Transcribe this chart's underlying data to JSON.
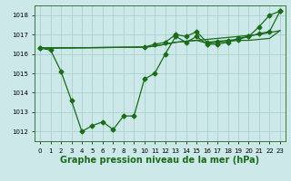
{
  "title": "Graphe pression niveau de la mer (hPa)",
  "xlabel_ticks": [
    "0",
    "1",
    "2",
    "3",
    "4",
    "5",
    "6",
    "7",
    "8",
    "9",
    "10",
    "11",
    "12",
    "13",
    "14",
    "15",
    "16",
    "17",
    "18",
    "19",
    "20",
    "21",
    "22",
    "23"
  ],
  "ylim": [
    1011.5,
    1018.5
  ],
  "yticks": [
    1012,
    1013,
    1014,
    1015,
    1016,
    1017,
    1018
  ],
  "xlim": [
    -0.5,
    23.5
  ],
  "bg_color": "#cce8e8",
  "grid_color": "#aad0d0",
  "line_color": "#1a6b1a",
  "series0": [
    1016.3,
    1016.2,
    1015.1,
    1013.6,
    1012.0,
    1012.3,
    1012.5,
    1012.1,
    1012.8,
    1012.8,
    1014.7,
    1015.0,
    1016.0,
    1016.9,
    1016.6,
    1016.9,
    1016.5,
    1016.5,
    1016.6,
    1016.8,
    1016.9,
    1017.4,
    1018.0,
    1018.2
  ],
  "series1_x": [
    0,
    10,
    11,
    12,
    13,
    14,
    15,
    16,
    17,
    18,
    19,
    20,
    21,
    22,
    23
  ],
  "series1_y": [
    1016.3,
    1016.35,
    1016.4,
    1016.5,
    1016.6,
    1016.65,
    1016.7,
    1016.75,
    1016.8,
    1016.85,
    1016.9,
    1016.95,
    1017.0,
    1017.1,
    1017.2
  ],
  "series2_x": [
    0,
    10,
    11,
    12,
    13,
    14,
    15,
    16,
    17,
    18,
    19,
    20,
    21,
    22,
    23
  ],
  "series2_y": [
    1016.3,
    1016.35,
    1016.4,
    1016.5,
    1016.6,
    1016.65,
    1016.7,
    1016.55,
    1016.6,
    1016.65,
    1016.7,
    1016.7,
    1016.75,
    1016.8,
    1017.2
  ],
  "series3_x": [
    0,
    10,
    11,
    12,
    13,
    14,
    15,
    16,
    17,
    18,
    19,
    20,
    21,
    22,
    23
  ],
  "series3_y": [
    1016.3,
    1016.35,
    1016.5,
    1016.6,
    1017.0,
    1016.9,
    1017.15,
    1016.6,
    1016.65,
    1016.7,
    1016.75,
    1016.9,
    1017.05,
    1017.15,
    1018.2
  ],
  "line_width": 0.9,
  "marker_size": 2.5,
  "font_size_title": 7,
  "font_size_ticks": 5
}
